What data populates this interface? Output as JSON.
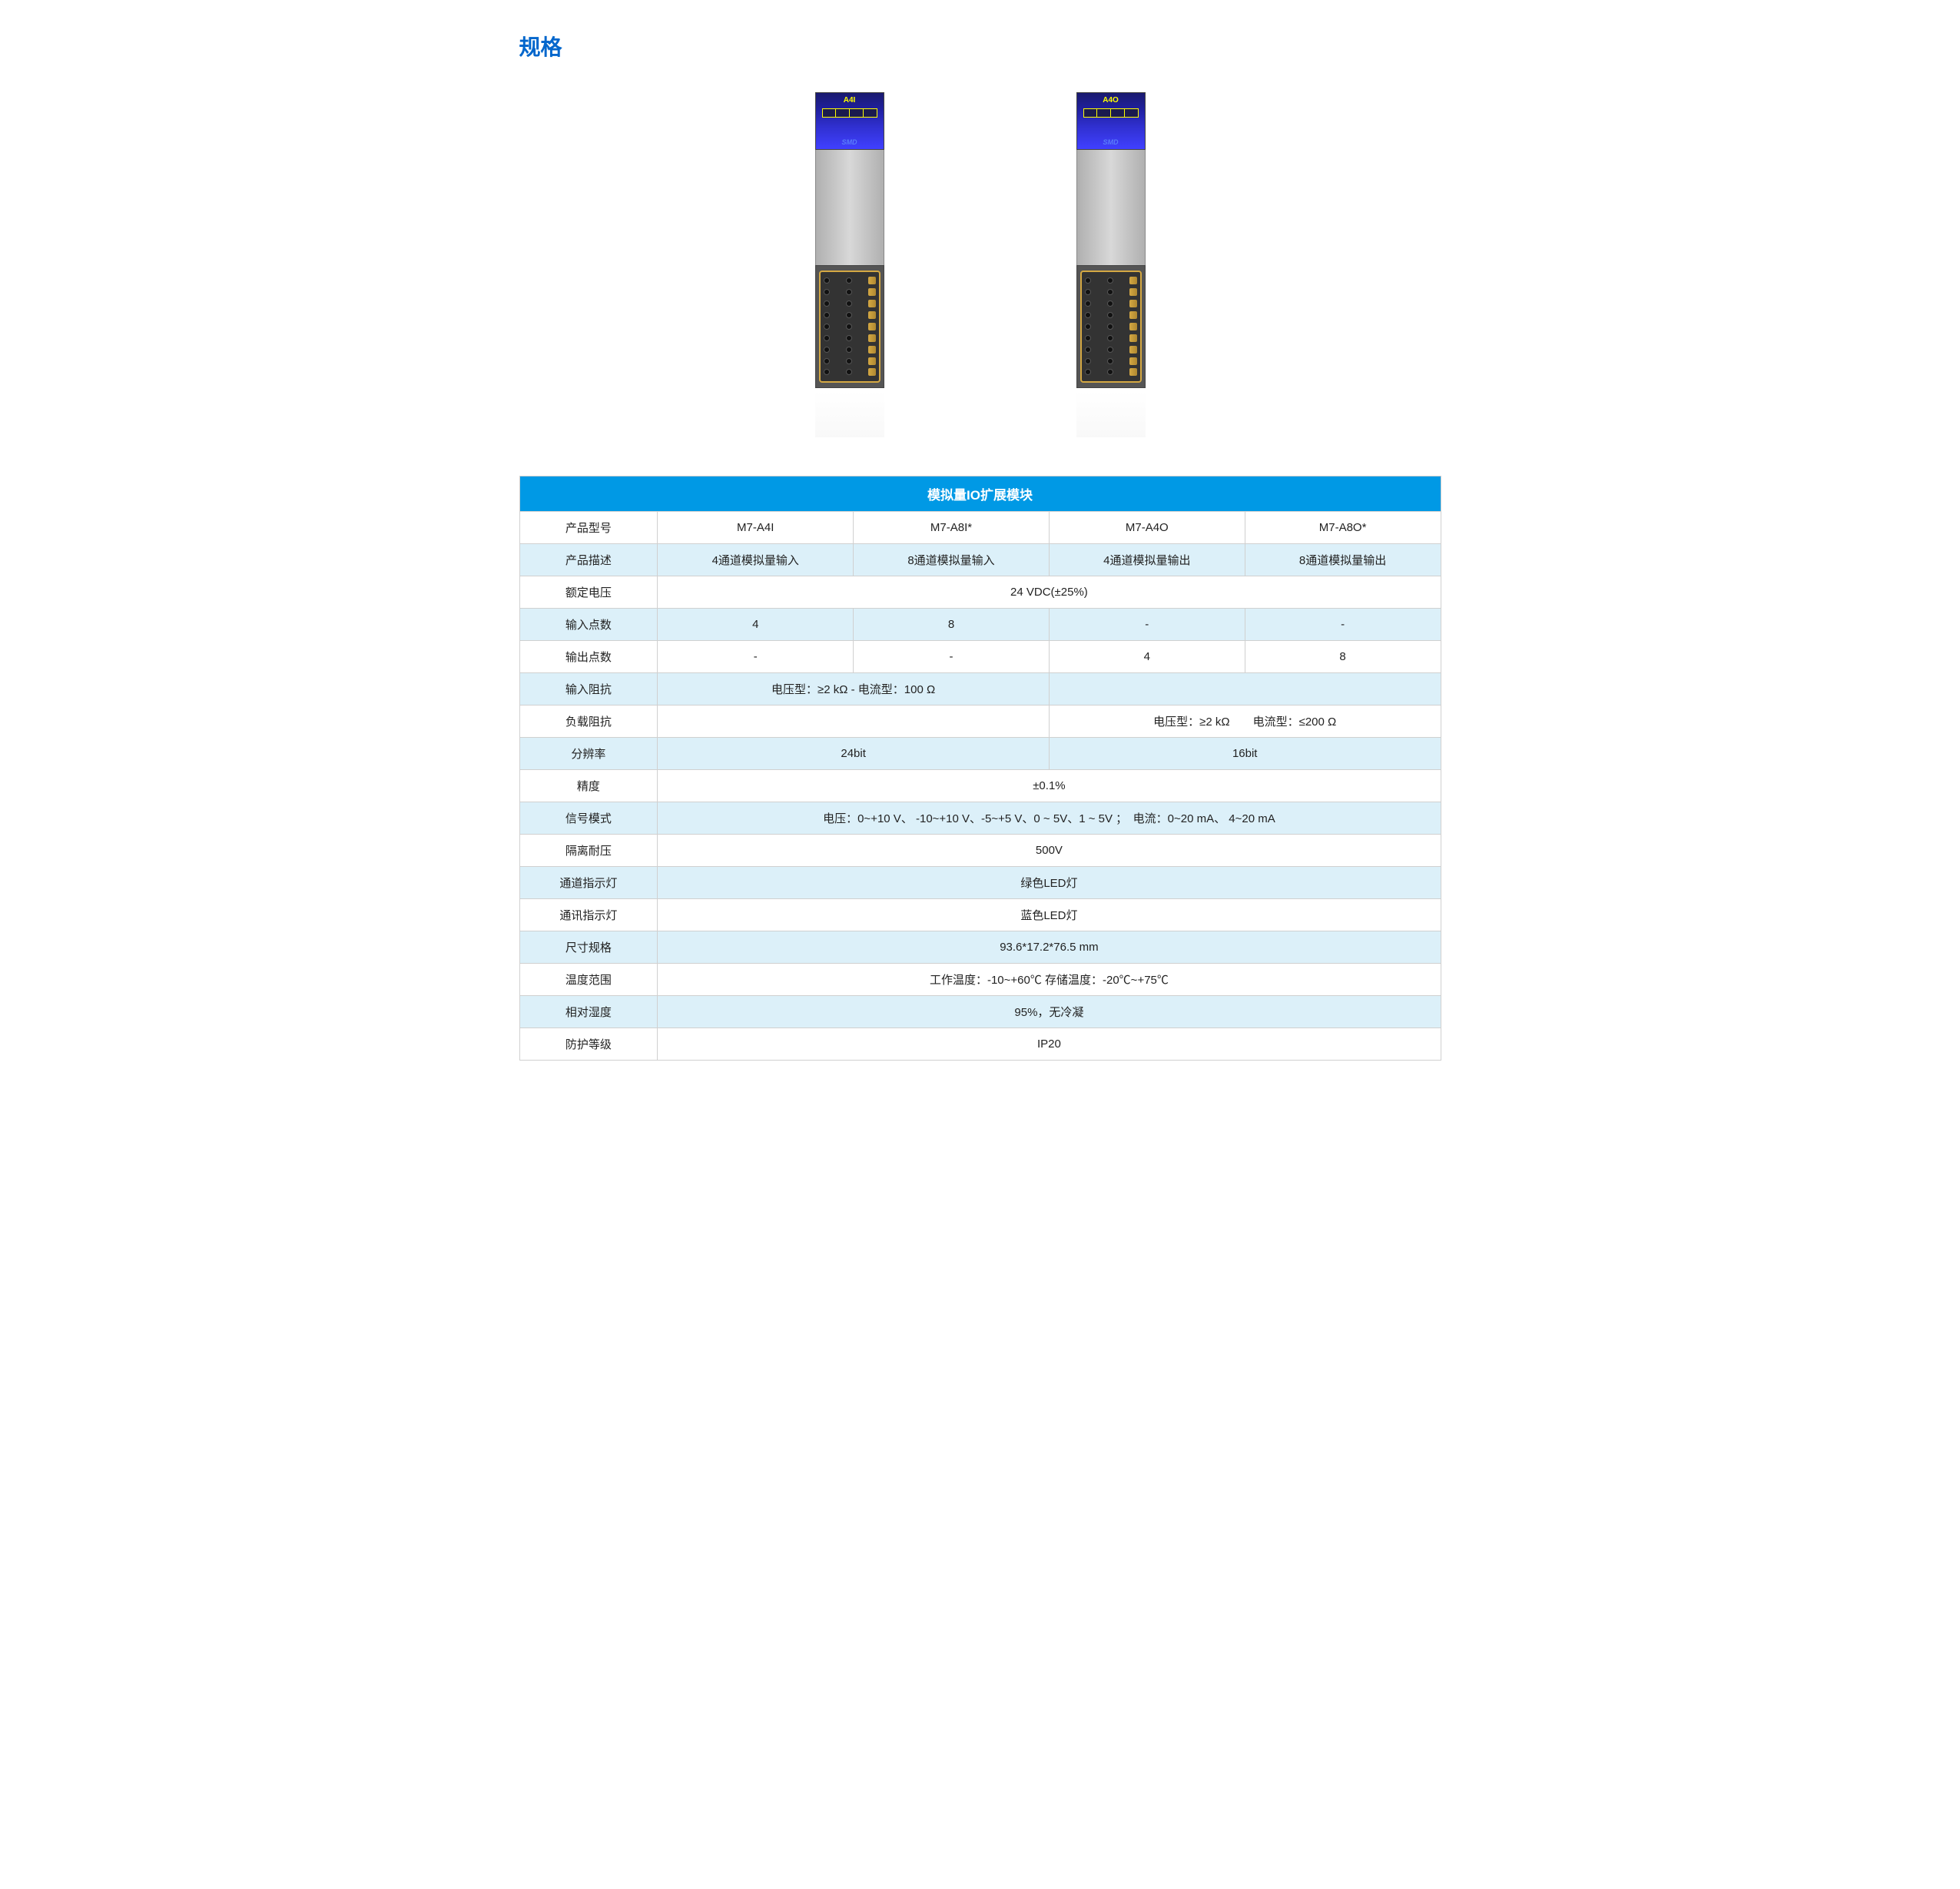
{
  "section_title": "规格",
  "product_images": {
    "left_label": "A4I",
    "right_label": "A4O",
    "brand": "SMD"
  },
  "table": {
    "header": "模拟量IO扩展模块",
    "rows": [
      {
        "label": "产品型号",
        "type": "cols4",
        "cells": [
          "M7-A4I",
          "M7-A8I*",
          "M7-A4O",
          "M7-A8O*"
        ],
        "bg": "odd"
      },
      {
        "label": "产品描述",
        "type": "cols4",
        "cells": [
          "4通道模拟量输入",
          "8通道模拟量输入",
          "4通道模拟量输出",
          "8通道模拟量输出"
        ],
        "bg": "even"
      },
      {
        "label": "额定电压",
        "type": "span4",
        "value": "24 VDC(±25%)",
        "bg": "odd"
      },
      {
        "label": "输入点数",
        "type": "cols4",
        "cells": [
          "4",
          "8",
          "-",
          "-"
        ],
        "bg": "even"
      },
      {
        "label": "输出点数",
        "type": "cols4",
        "cells": [
          "-",
          "-",
          "4",
          "8"
        ],
        "bg": "odd"
      },
      {
        "label": "输入阻抗",
        "type": "span2_empty2",
        "value": "电压型：≥2 kΩ    -    电流型：100 Ω",
        "bg": "even"
      },
      {
        "label": "负载阻抗",
        "type": "empty2_span2",
        "value": "电压型：≥2 kΩ　　电流型：≤200 Ω",
        "bg": "odd"
      },
      {
        "label": "分辨率",
        "type": "span2_span2",
        "left": "24bit",
        "right": "16bit",
        "bg": "even"
      },
      {
        "label": "精度",
        "type": "span4",
        "value": "±0.1%",
        "bg": "odd"
      },
      {
        "label": "信号模式",
        "type": "span4",
        "value": "电压：0~+10 V、 -10~+10 V、-5~+5 V、0 ~ 5V、1 ~ 5V ；　电流：0~20 mA、 4~20 mA",
        "bg": "even"
      },
      {
        "label": "隔离耐压",
        "type": "span4",
        "value": "500V",
        "bg": "odd"
      },
      {
        "label": "通道指示灯",
        "type": "span4",
        "value": "绿色LED灯",
        "bg": "even"
      },
      {
        "label": "通讯指示灯",
        "type": "span4",
        "value": "蓝色LED灯",
        "bg": "odd"
      },
      {
        "label": "尺寸规格",
        "type": "span4",
        "value": "93.6*17.2*76.5 mm",
        "bg": "even"
      },
      {
        "label": "温度范围",
        "type": "span4",
        "value": "工作温度：-10~+60℃  存储温度：-20℃~+75℃",
        "bg": "odd"
      },
      {
        "label": "相对湿度",
        "type": "span4",
        "value": "95%，无冷凝",
        "bg": "even"
      },
      {
        "label": "防护等级",
        "type": "span4",
        "value": "IP20",
        "bg": "odd"
      }
    ]
  },
  "colors": {
    "title_color": "#0066cc",
    "header_bg": "#0099e5",
    "header_text": "#ffffff",
    "row_even_bg": "#dcf0f9",
    "row_odd_bg": "#ffffff",
    "border_color": "#d0d0d0",
    "text_color": "#222222"
  }
}
